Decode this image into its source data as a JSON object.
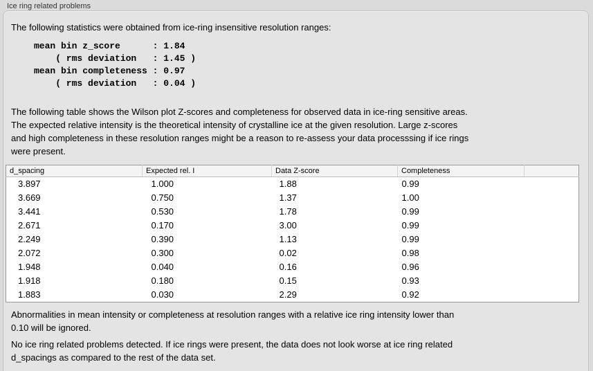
{
  "panel": {
    "title": "Ice ring related problems"
  },
  "intro_text": "The following statistics were obtained from ice-ring insensitive resolution ranges:",
  "stats_block": "mean bin z_score      : 1.84\n    ( rms deviation   : 1.45 )\nmean bin completeness : 0.97\n    ( rms deviation   : 0.04 )",
  "stats": {
    "mean_bin_z_score": "1.84",
    "z_score_rms_deviation": "1.45",
    "mean_bin_completeness": "0.97",
    "completeness_rms_deviation": "0.04"
  },
  "description_text": "The following table shows the Wilson plot Z-scores and completeness for observed data in ice-ring sensitive areas.\nThe expected relative intensity is the theoretical intensity of crystalline ice at the given resolution. Large z-scores\nand high completeness in these resolution ranges might be a reason to re-assess your data processsing if ice rings\nwere present.",
  "table": {
    "columns": [
      "d_spacing",
      "Expected rel. I",
      "Data Z-score",
      "Completeness",
      ""
    ],
    "rows": [
      [
        "3.897",
        "1.000",
        "1.88",
        "0.99"
      ],
      [
        "3.669",
        "0.750",
        "1.37",
        "1.00"
      ],
      [
        "3.441",
        "0.530",
        "1.78",
        "0.99"
      ],
      [
        "2.671",
        "0.170",
        "3.00",
        "0.99"
      ],
      [
        "2.249",
        "0.390",
        "1.13",
        "0.99"
      ],
      [
        "2.072",
        "0.300",
        "0.02",
        "0.98"
      ],
      [
        "1.948",
        "0.040",
        "0.16",
        "0.96"
      ],
      [
        "1.918",
        "0.180",
        "0.15",
        "0.93"
      ],
      [
        "1.883",
        "0.030",
        "2.29",
        "0.92"
      ]
    ]
  },
  "footnote_text": "Abnormalities in mean intensity or completeness at resolution ranges with a relative ice ring intensity lower than\n0.10 will be ignored.",
  "conclusion_text": "No ice ring related problems detected. If ice rings were present, the data does not look worse at ice ring related\nd_spacings as compared to the rest of the data set."
}
